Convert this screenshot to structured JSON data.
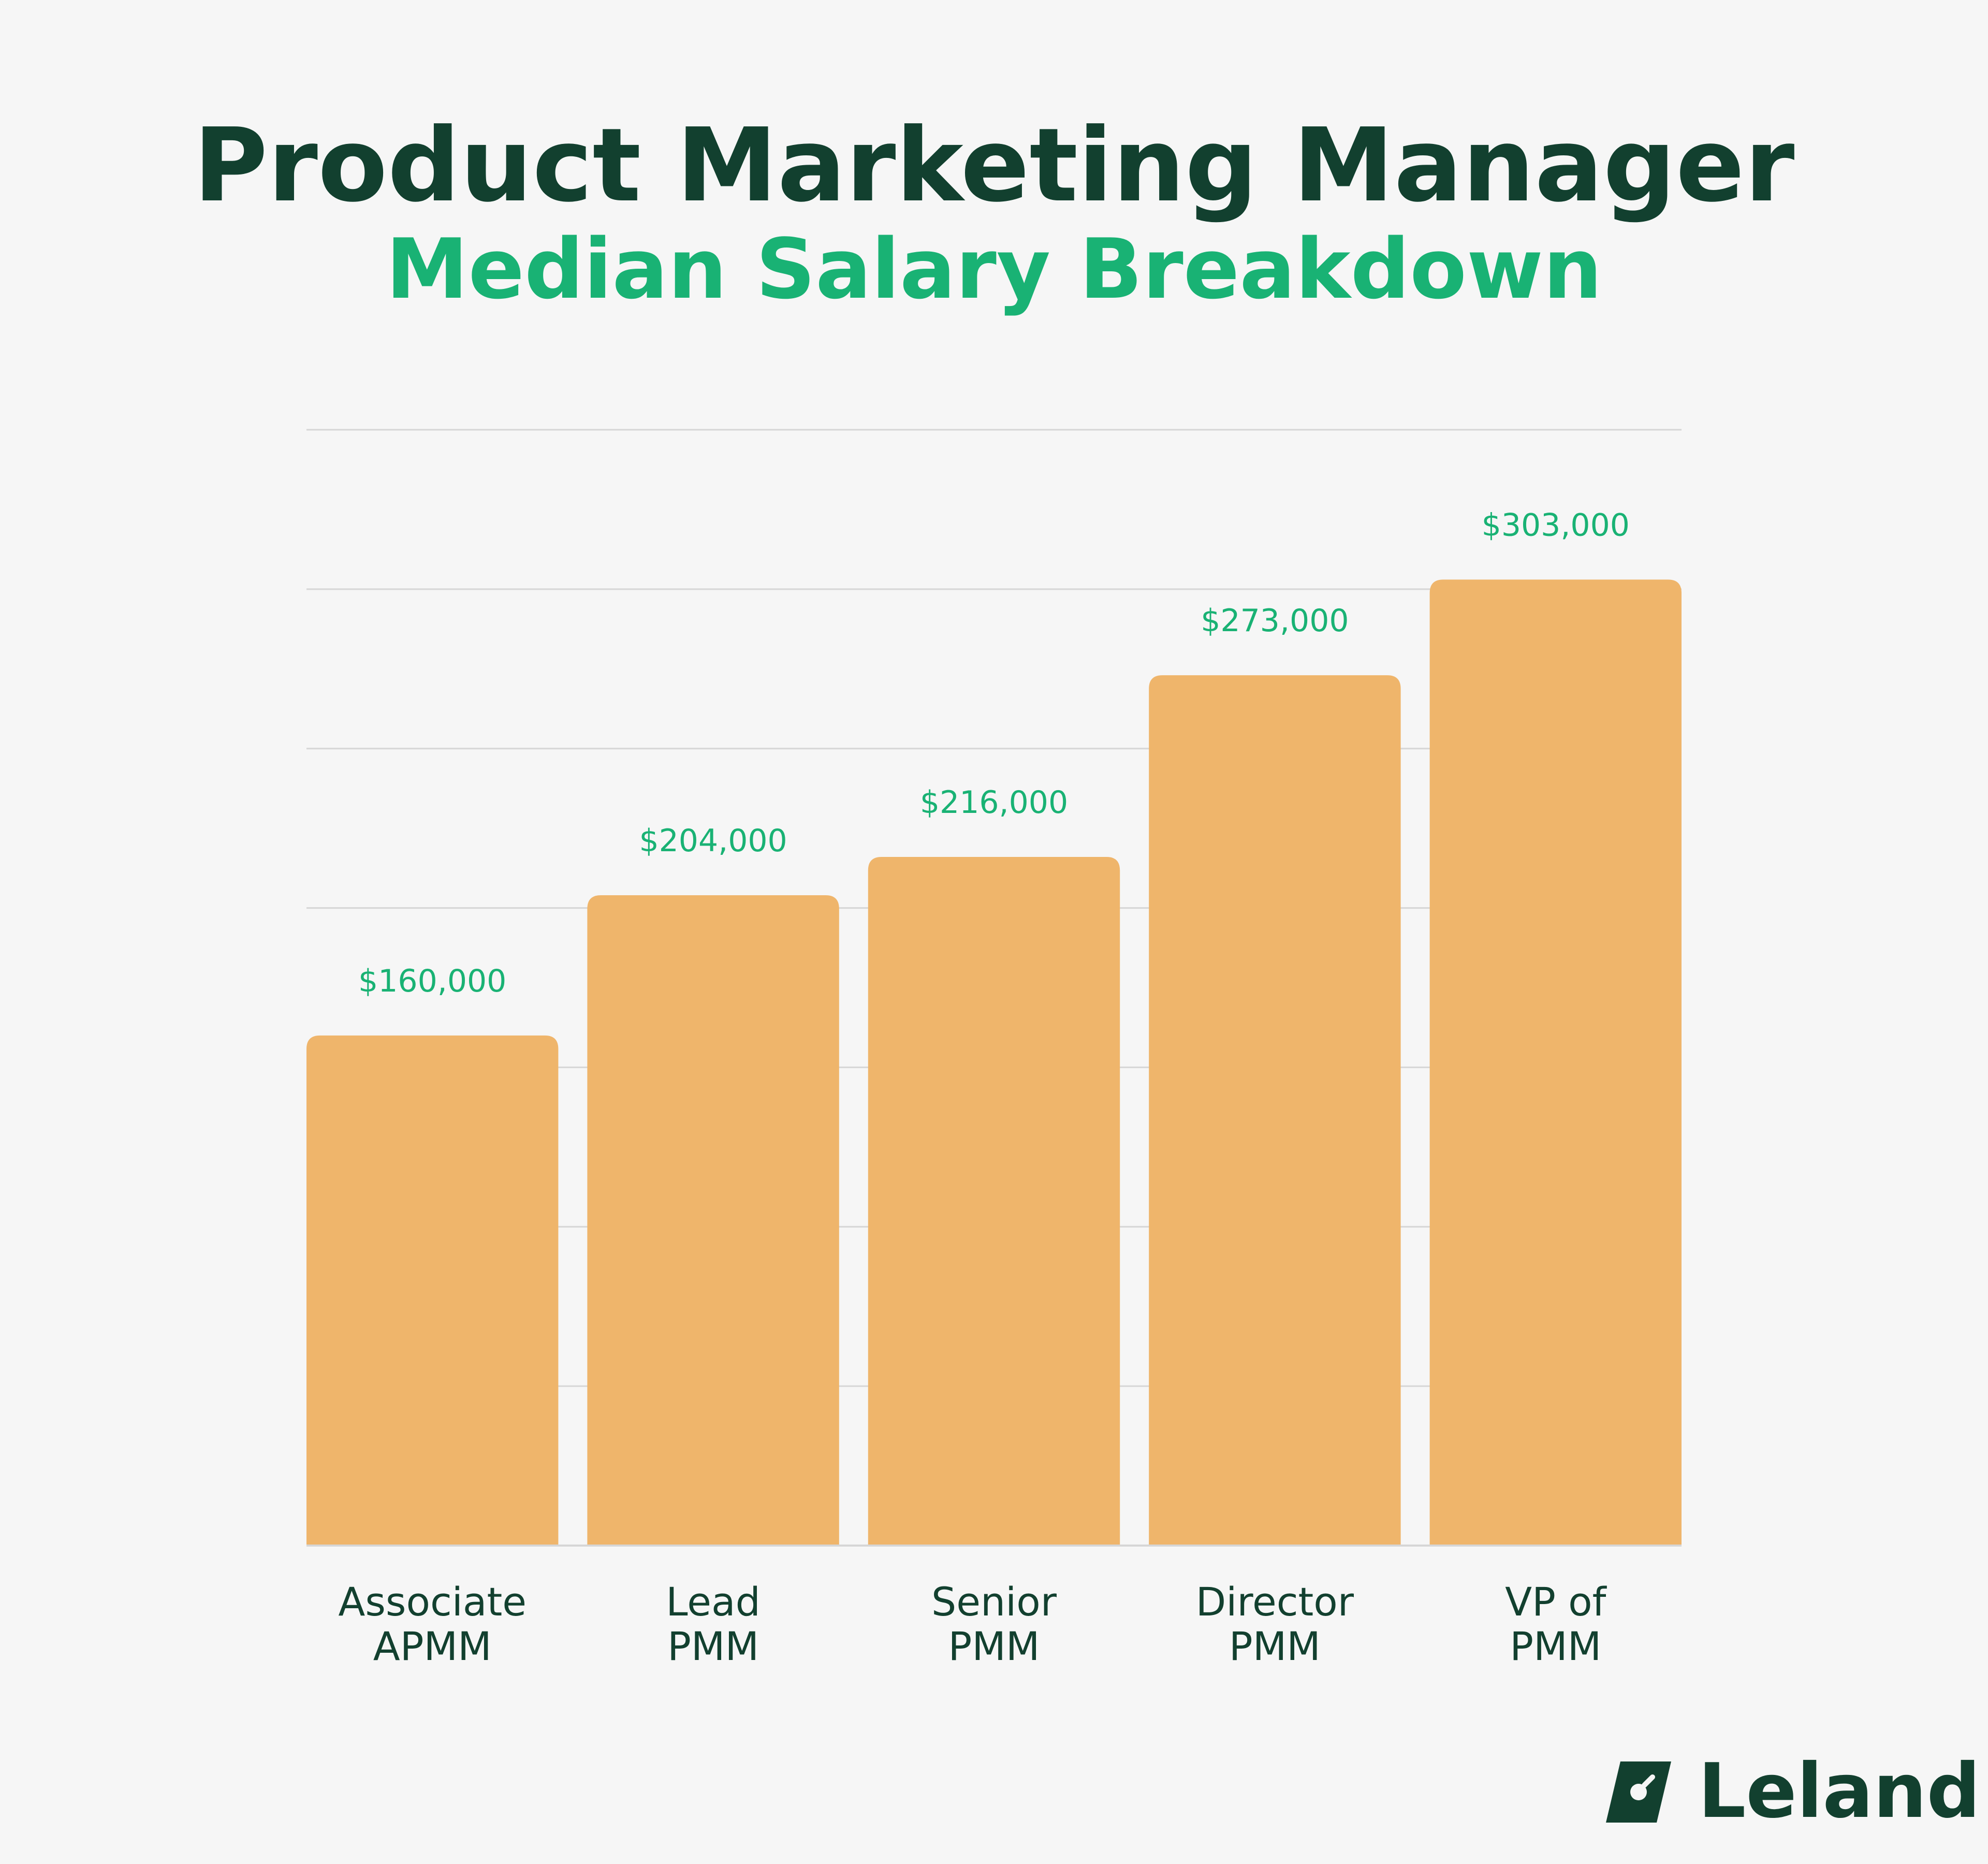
{
  "header": {
    "title": "Product Marketing Manager",
    "subtitle": "Median Salary Breakdown"
  },
  "brand": {
    "name": "Leland",
    "icon": "leland-logo-icon",
    "color": "#12402f"
  },
  "colors": {
    "bar": "#efb56b",
    "value_label": "#19b274",
    "category_label": "#12402f",
    "gridline": "#d6d6d6",
    "background": "#f6f6f6"
  },
  "chart_data": {
    "type": "bar",
    "categories": [
      [
        "Associate",
        "APMM"
      ],
      [
        "Lead",
        "PMM"
      ],
      [
        "Senior",
        "PMM"
      ],
      [
        "Director",
        "PMM"
      ],
      [
        "VP of",
        "PMM"
      ]
    ],
    "values": [
      160000,
      204000,
      216000,
      273000,
      303000
    ],
    "value_labels": [
      "$160,000",
      "$204,000",
      "$216,000",
      "$273,000",
      "$303,000"
    ],
    "title": "Product Marketing Manager",
    "subtitle": "Median Salary Breakdown",
    "xlabel": "",
    "ylabel": "",
    "ylim": [
      0,
      350000
    ],
    "gridline_step": 50000,
    "grid": true,
    "legend": "none"
  }
}
